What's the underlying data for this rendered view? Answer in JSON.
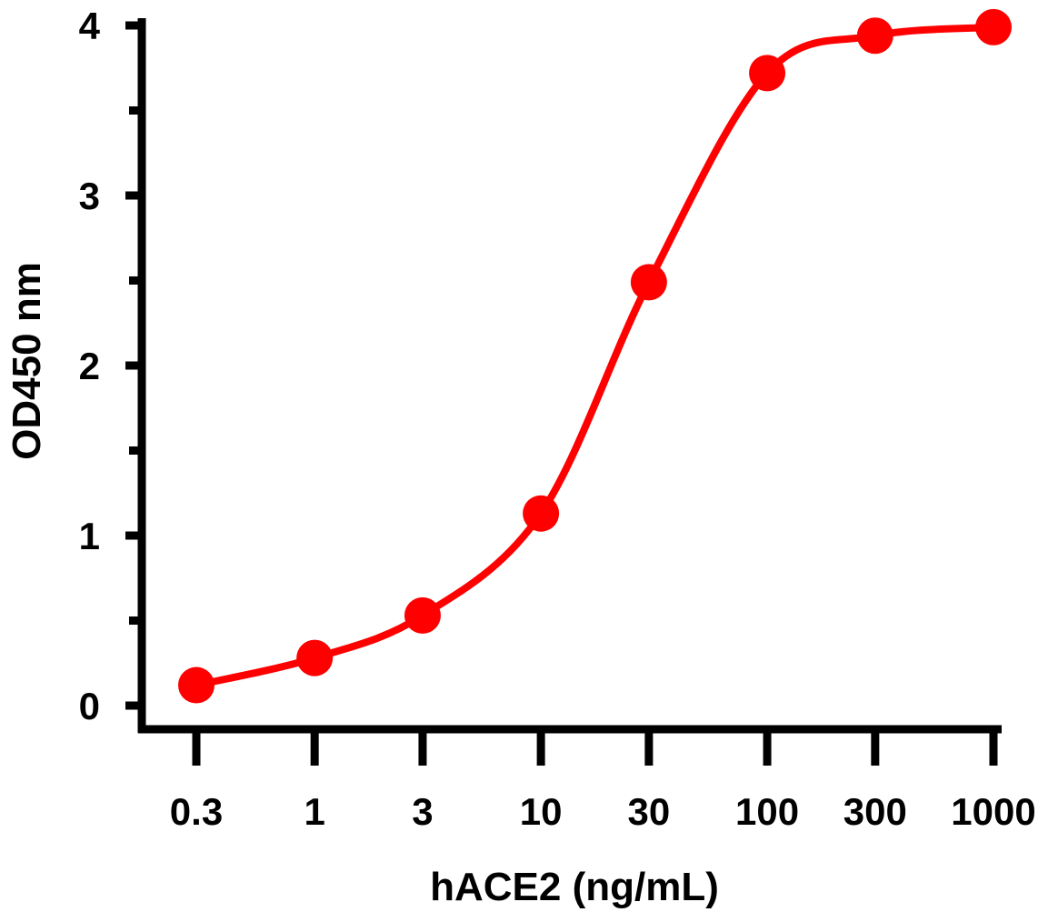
{
  "chart_data": {
    "type": "line",
    "title": "",
    "xlabel": "hACE2 (ng/mL)",
    "ylabel": "OD450 nm",
    "x_scale": "log",
    "x_ticks": [
      0.3,
      1,
      3,
      10,
      30,
      100,
      300,
      1000
    ],
    "x_tick_labels": [
      "0.3",
      "1",
      "3",
      "10",
      "30",
      "100",
      "300",
      "1000"
    ],
    "y_ticks": [
      0,
      1,
      2,
      3,
      4
    ],
    "y_tick_labels": [
      "0",
      "1",
      "2",
      "3",
      "4"
    ],
    "ylim": [
      0,
      4
    ],
    "grid": false,
    "legend": "none",
    "series": [
      {
        "color": "#ff0000",
        "points": [
          {
            "x": 0.3,
            "y": 0.12
          },
          {
            "x": 1,
            "y": 0.28
          },
          {
            "x": 3,
            "y": 0.53
          },
          {
            "x": 10,
            "y": 1.13
          },
          {
            "x": 30,
            "y": 2.49
          },
          {
            "x": 100,
            "y": 3.72
          },
          {
            "x": 300,
            "y": 3.94
          },
          {
            "x": 1000,
            "y": 3.99
          }
        ]
      }
    ]
  }
}
